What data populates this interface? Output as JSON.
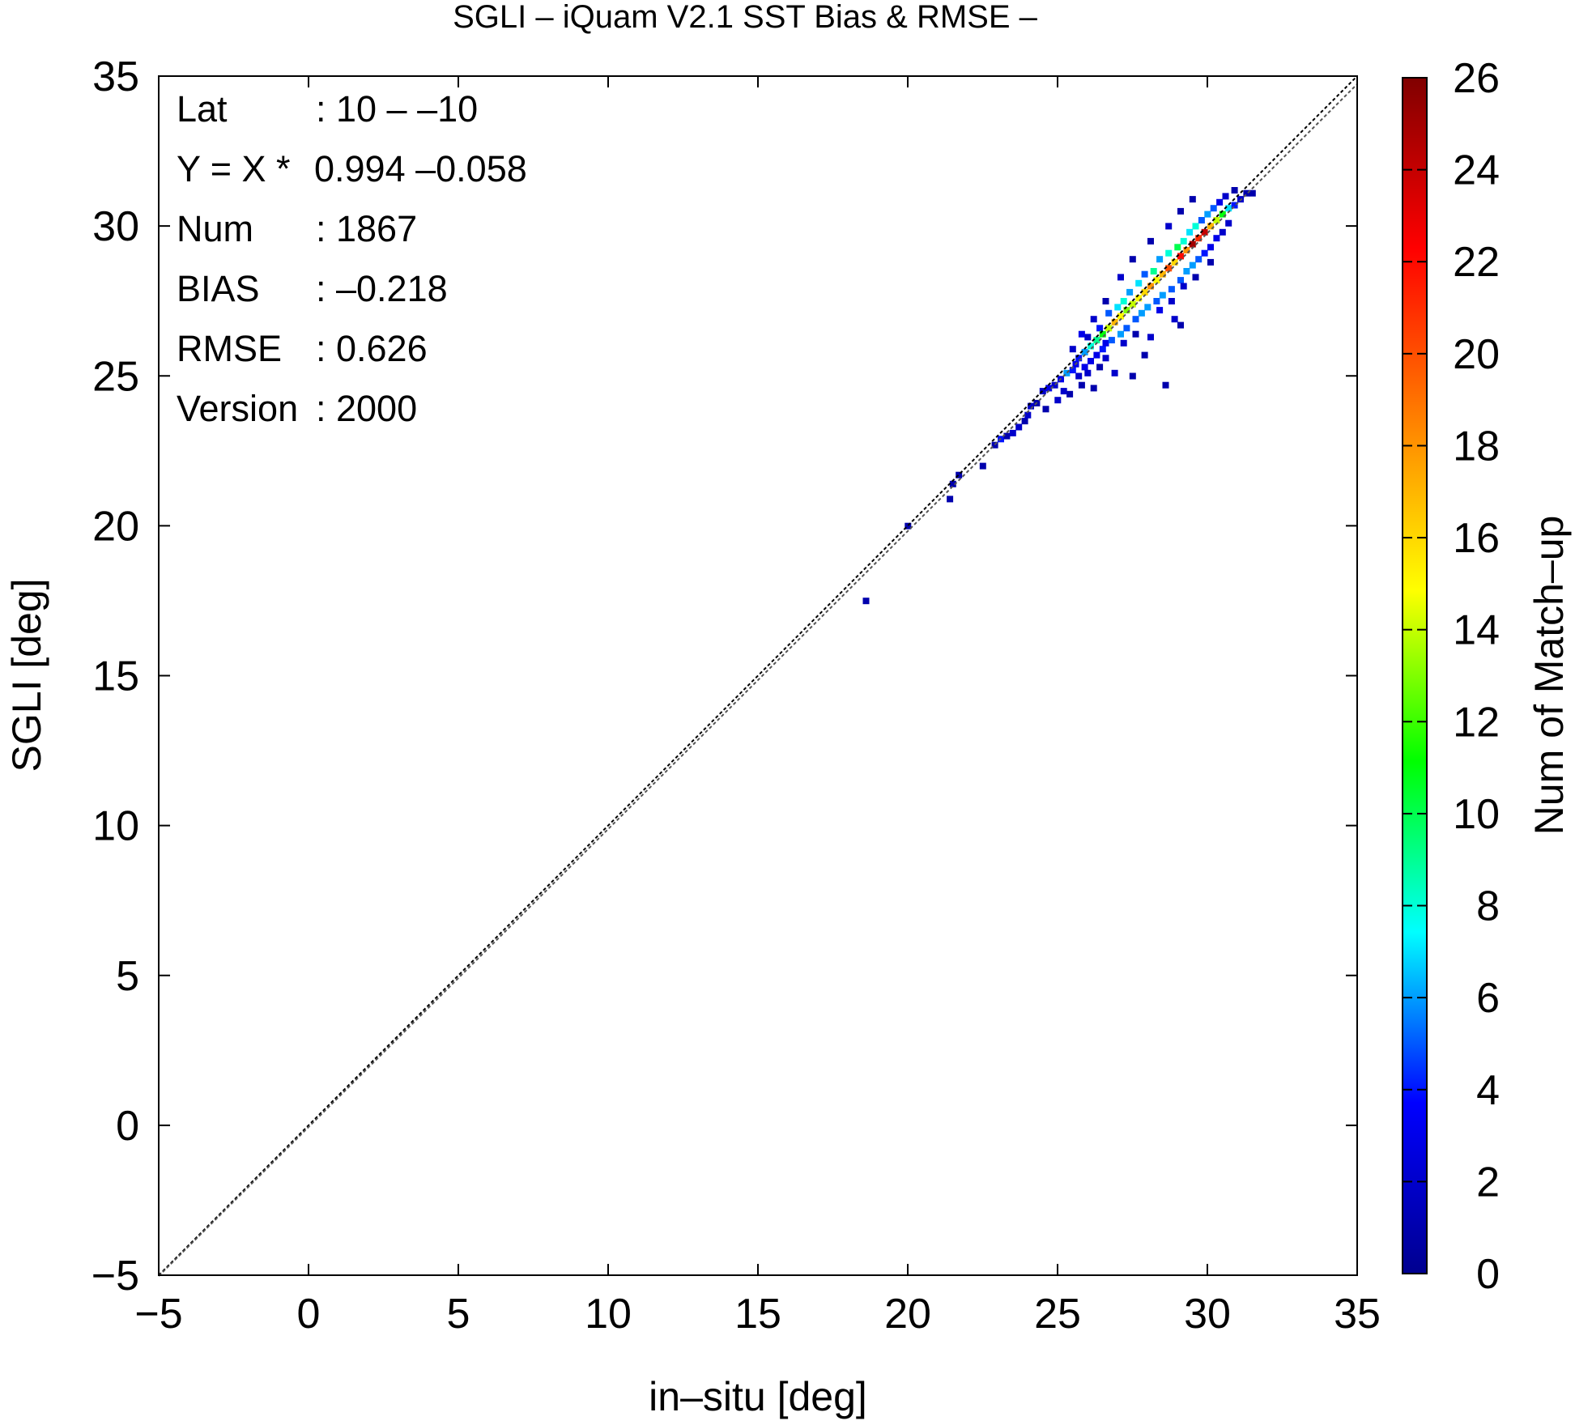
{
  "chart_data": {
    "type": "heatmap",
    "title": "SGLI – iQuam V2.1 SST Bias & RMSE  –",
    "xlabel": "in–situ [deg]",
    "ylabel": "SGLI [deg]",
    "xlim": [
      -5,
      35
    ],
    "ylim": [
      -5,
      35
    ],
    "xticks": [
      "−5",
      "0",
      "5",
      "10",
      "15",
      "20",
      "25",
      "30",
      "35"
    ],
    "yticks": [
      "−5",
      "0",
      "5",
      "10",
      "15",
      "20",
      "25",
      "30",
      "35"
    ],
    "grid": false,
    "reference_lines": [
      {
        "label": "1:1",
        "slope": 1.0,
        "intercept": 0.0
      },
      {
        "label": "fit",
        "slope": 0.994,
        "intercept": -0.058
      }
    ],
    "stats": [
      {
        "key": "Lat",
        "value": ": 10 – –10"
      },
      {
        "key": "Y = X *",
        "value": "0.994 –0.058"
      },
      {
        "key": "Num",
        "value": ": 1867"
      },
      {
        "key": "BIAS",
        "value": ": –0.218"
      },
      {
        "key": "RMSE",
        "value": ": 0.626"
      },
      {
        "key": "Version",
        "value": ": 2000"
      }
    ],
    "colorbar": {
      "label": "Num of Match–up",
      "range": [
        0,
        26
      ],
      "ticks": [
        "0",
        "2",
        "4",
        "6",
        "8",
        "10",
        "12",
        "14",
        "16",
        "18",
        "20",
        "22",
        "24",
        "26"
      ],
      "colors": [
        "#00008f",
        "#0000ff",
        "#00ffff",
        "#00ff00",
        "#ffff00",
        "#ff8000",
        "#ff0000",
        "#800000"
      ]
    },
    "bin_size": 0.2,
    "cells": [
      [
        18.5,
        17.4,
        1
      ],
      [
        19.9,
        19.9,
        1
      ],
      [
        21.3,
        20.8,
        1
      ],
      [
        21.4,
        21.3,
        1
      ],
      [
        21.6,
        21.6,
        1
      ],
      [
        22.4,
        21.9,
        1
      ],
      [
        22.8,
        22.6,
        1
      ],
      [
        23.0,
        22.8,
        4
      ],
      [
        23.2,
        22.9,
        1
      ],
      [
        23.4,
        23.0,
        2
      ],
      [
        23.6,
        23.2,
        2
      ],
      [
        23.8,
        23.4,
        1
      ],
      [
        23.9,
        23.6,
        2
      ],
      [
        24.0,
        23.9,
        2
      ],
      [
        24.2,
        24.0,
        1
      ],
      [
        24.4,
        24.4,
        2
      ],
      [
        24.6,
        24.5,
        3
      ],
      [
        24.8,
        24.6,
        2
      ],
      [
        25.0,
        24.8,
        3
      ],
      [
        25.2,
        25.0,
        6
      ],
      [
        25.3,
        24.3,
        1
      ],
      [
        25.4,
        25.1,
        4
      ],
      [
        25.5,
        25.3,
        3
      ],
      [
        25.6,
        25.5,
        4
      ],
      [
        25.6,
        24.9,
        2
      ],
      [
        25.7,
        24.6,
        1
      ],
      [
        25.8,
        25.7,
        6
      ],
      [
        25.8,
        25.2,
        3
      ],
      [
        25.9,
        26.2,
        2
      ],
      [
        26.0,
        25.9,
        8
      ],
      [
        26.0,
        25.4,
        3
      ],
      [
        26.1,
        24.5,
        1
      ],
      [
        26.2,
        26.1,
        9
      ],
      [
        26.2,
        25.6,
        3
      ],
      [
        26.3,
        26.5,
        4
      ],
      [
        26.4,
        26.3,
        11
      ],
      [
        26.4,
        25.8,
        4
      ],
      [
        26.5,
        26.0,
        3
      ],
      [
        26.6,
        26.5,
        14
      ],
      [
        26.6,
        27.0,
        5
      ],
      [
        26.7,
        26.1,
        5
      ],
      [
        26.8,
        26.7,
        17
      ],
      [
        26.8,
        25.0,
        2
      ],
      [
        26.9,
        27.2,
        7
      ],
      [
        27.0,
        26.9,
        15
      ],
      [
        27.0,
        26.3,
        6
      ],
      [
        27.1,
        27.4,
        8
      ],
      [
        27.2,
        27.1,
        13
      ],
      [
        27.2,
        26.5,
        5
      ],
      [
        27.3,
        27.7,
        6
      ],
      [
        27.4,
        27.3,
        14
      ],
      [
        27.4,
        24.9,
        1
      ],
      [
        27.5,
        26.8,
        5
      ],
      [
        27.6,
        27.5,
        15
      ],
      [
        27.6,
        28.0,
        7
      ],
      [
        27.7,
        27.0,
        6
      ],
      [
        27.8,
        27.7,
        16
      ],
      [
        27.8,
        28.3,
        5
      ],
      [
        27.9,
        27.2,
        6
      ],
      [
        28.0,
        27.9,
        18
      ],
      [
        28.0,
        26.2,
        2
      ],
      [
        28.1,
        28.4,
        9
      ],
      [
        28.2,
        28.1,
        15
      ],
      [
        28.2,
        27.4,
        5
      ],
      [
        28.3,
        28.8,
        6
      ],
      [
        28.4,
        28.3,
        17
      ],
      [
        28.4,
        27.6,
        6
      ],
      [
        28.5,
        24.6,
        1
      ],
      [
        28.6,
        28.5,
        20
      ],
      [
        28.6,
        29.0,
        8
      ],
      [
        28.7,
        27.8,
        5
      ],
      [
        28.8,
        28.7,
        16
      ],
      [
        28.8,
        26.8,
        2
      ],
      [
        28.9,
        29.2,
        10
      ],
      [
        29.0,
        28.9,
        22
      ],
      [
        29.0,
        28.1,
        5
      ],
      [
        29.1,
        29.4,
        8
      ],
      [
        29.2,
        29.1,
        18
      ],
      [
        29.2,
        28.4,
        6
      ],
      [
        29.3,
        29.7,
        7
      ],
      [
        29.4,
        29.3,
        25
      ],
      [
        29.4,
        28.6,
        6
      ],
      [
        29.5,
        29.9,
        8
      ],
      [
        29.6,
        29.5,
        21
      ],
      [
        29.6,
        28.8,
        5
      ],
      [
        29.7,
        30.1,
        5
      ],
      [
        29.8,
        29.7,
        24
      ],
      [
        29.8,
        29.0,
        4
      ],
      [
        29.9,
        30.3,
        6
      ],
      [
        30.0,
        29.9,
        17
      ],
      [
        30.0,
        29.2,
        3
      ],
      [
        30.1,
        30.5,
        5
      ],
      [
        30.2,
        30.1,
        14
      ],
      [
        30.2,
        29.5,
        3
      ],
      [
        30.3,
        30.7,
        3
      ],
      [
        30.4,
        30.3,
        11
      ],
      [
        30.4,
        29.7,
        2
      ],
      [
        30.5,
        30.9,
        2
      ],
      [
        30.6,
        30.5,
        7
      ],
      [
        30.6,
        30.0,
        2
      ],
      [
        30.8,
        30.6,
        4
      ],
      [
        30.8,
        31.1,
        1
      ],
      [
        31.0,
        30.8,
        2
      ],
      [
        31.2,
        31.0,
        1
      ],
      [
        31.4,
        31.0,
        1
      ],
      [
        25.9,
        25.0,
        2
      ],
      [
        26.3,
        25.2,
        1
      ],
      [
        26.5,
        25.5,
        2
      ],
      [
        27.1,
        26.0,
        2
      ],
      [
        27.5,
        26.3,
        1
      ],
      [
        27.0,
        28.2,
        2
      ],
      [
        27.4,
        28.8,
        1
      ],
      [
        28.0,
        29.4,
        1
      ],
      [
        28.6,
        29.9,
        2
      ],
      [
        29.0,
        30.4,
        1
      ],
      [
        29.4,
        30.8,
        1
      ],
      [
        25.4,
        25.8,
        2
      ],
      [
        25.7,
        26.3,
        3
      ],
      [
        26.1,
        26.8,
        2
      ],
      [
        26.5,
        27.4,
        1
      ],
      [
        28.3,
        27.1,
        3
      ],
      [
        28.7,
        27.4,
        2
      ],
      [
        29.1,
        27.9,
        2
      ],
      [
        29.5,
        28.2,
        1
      ],
      [
        30.0,
        28.7,
        1
      ],
      [
        24.5,
        23.8,
        1
      ],
      [
        24.9,
        24.1,
        2
      ],
      [
        25.1,
        24.4,
        2
      ],
      [
        27.8,
        25.6,
        1
      ],
      [
        29.0,
        26.6,
        1
      ]
    ]
  }
}
